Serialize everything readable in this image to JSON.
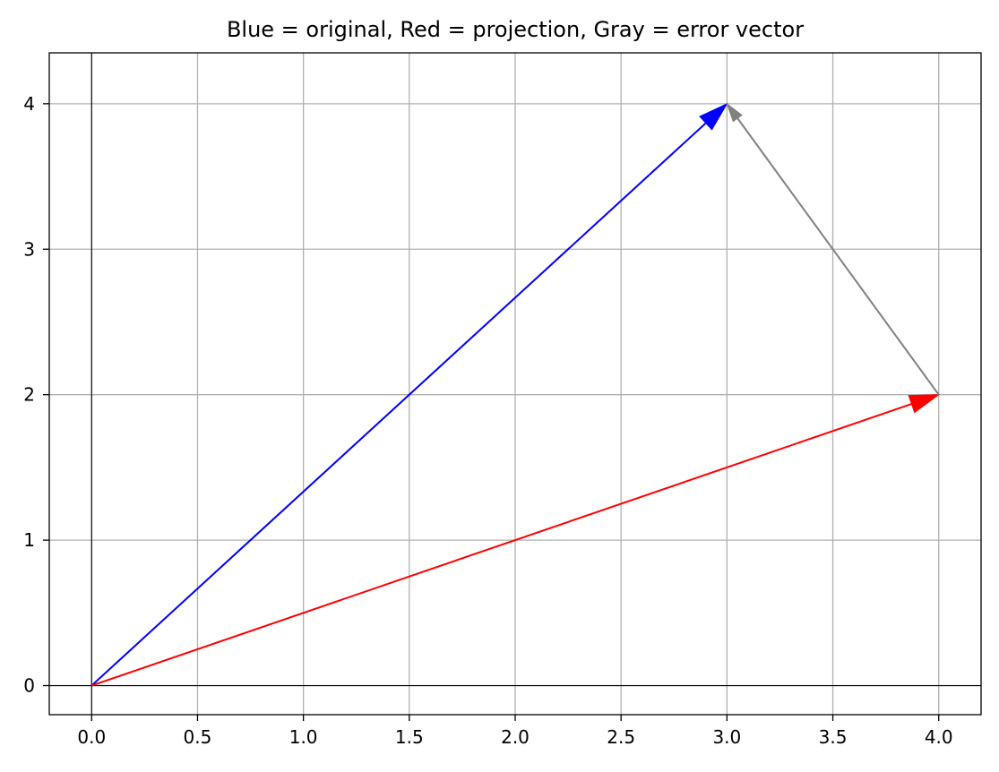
{
  "chart_data": {
    "type": "quiver",
    "title": "Blue = original, Red = projection, Gray = error vector",
    "xlabel": "",
    "ylabel": "",
    "xlim": [
      -0.2,
      4.2
    ],
    "ylim": [
      -0.2,
      4.35
    ],
    "x_ticks": [
      0.0,
      0.5,
      1.0,
      1.5,
      2.0,
      2.5,
      3.0,
      3.5,
      4.0
    ],
    "x_tick_labels": [
      "0.0",
      "0.5",
      "1.0",
      "1.5",
      "2.0",
      "2.5",
      "3.0",
      "3.5",
      "4.0"
    ],
    "y_ticks": [
      0,
      1,
      2,
      3,
      4
    ],
    "y_tick_labels": [
      "0",
      "1",
      "2",
      "3",
      "4"
    ],
    "grid": true,
    "reference_lines": {
      "x": 0,
      "y": 0,
      "color": "#000000"
    },
    "vectors": [
      {
        "color": "#0000ff",
        "start": [
          0,
          0
        ],
        "end": [
          3,
          4
        ]
      },
      {
        "color": "#ff0000",
        "start": [
          0,
          0
        ],
        "end": [
          4,
          2
        ]
      },
      {
        "color": "#808080",
        "start": [
          4,
          2
        ],
        "end": [
          3,
          4
        ]
      }
    ]
  }
}
